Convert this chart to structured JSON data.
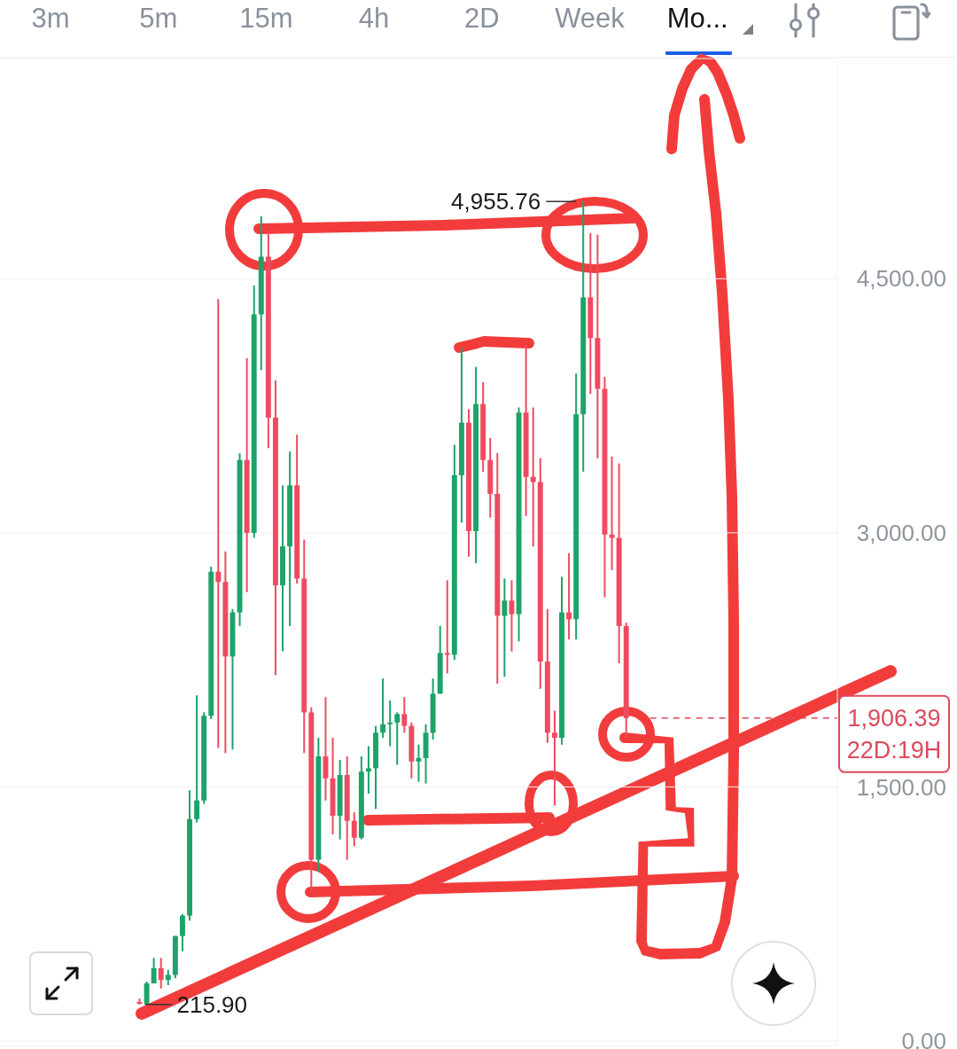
{
  "chart_data": {
    "type": "candlestick",
    "categories": [
      null,
      null,
      null,
      null,
      null,
      null,
      null,
      null,
      null,
      null,
      null,
      null,
      null,
      null,
      null,
      null,
      null,
      null,
      null,
      null,
      null,
      null,
      null,
      null,
      null,
      null,
      null,
      null,
      null,
      null,
      null,
      null,
      null,
      null,
      null,
      null,
      null,
      null,
      null,
      null,
      null,
      null,
      null,
      null,
      null,
      null,
      null,
      null,
      null,
      null,
      null,
      null,
      null,
      null,
      null,
      null,
      null,
      null,
      null,
      null,
      null,
      null,
      null,
      null,
      null,
      null,
      null,
      null,
      null,
      null,
      null,
      null,
      null,
      null,
      null,
      null,
      null,
      null,
      null,
      null,
      null,
      null,
      null,
      null,
      null,
      null,
      null,
      null,
      null,
      null,
      null,
      null,
      null,
      null,
      null,
      null,
      null,
      null,
      null,
      null,
      null,
      null,
      null,
      null,
      null,
      null,
      null,
      null,
      null,
      null,
      null,
      null,
      null,
      null,
      null,
      null,
      null
    ],
    "ohlc": [
      null,
      null,
      null,
      null,
      null,
      null,
      null,
      null,
      null,
      null,
      null,
      null,
      null,
      null,
      null,
      null,
      null,
      null,
      null,
      [
        230,
        250,
        215.9,
        220
      ],
      [
        220,
        350,
        220,
        340
      ],
      [
        340,
        490,
        340,
        430
      ],
      [
        430,
        490,
        310,
        360
      ],
      [
        360,
        420,
        330,
        390
      ],
      [
        390,
        620,
        370,
        620
      ],
      [
        620,
        750,
        530,
        740
      ],
      [
        740,
        1480,
        710,
        1310
      ],
      [
        1310,
        2040,
        1290,
        1420
      ],
      [
        1420,
        1940,
        1400,
        1920
      ],
      [
        1920,
        2800,
        1900,
        2770
      ],
      [
        2770,
        4380,
        1730,
        2710
      ],
      [
        2710,
        2890,
        1700,
        2270
      ],
      [
        2270,
        2550,
        1720,
        2530
      ],
      [
        2530,
        3470,
        2450,
        3430
      ],
      [
        3430,
        4030,
        2650,
        3000
      ],
      [
        3000,
        4460,
        2970,
        4290
      ],
      [
        4290,
        4870,
        3960,
        4630
      ],
      [
        4630,
        4780,
        3500,
        3680
      ],
      [
        3680,
        3900,
        2160,
        2690
      ],
      [
        2690,
        3280,
        2300,
        2920
      ],
      [
        2920,
        3480,
        2450,
        3280
      ],
      [
        3280,
        3580,
        2700,
        2730
      ],
      [
        2730,
        2960,
        1700,
        1940
      ],
      [
        1940,
        1970,
        880,
        1070
      ],
      [
        1070,
        1790,
        1000,
        1680
      ],
      [
        1680,
        2030,
        1420,
        1550
      ],
      [
        1550,
        1790,
        1220,
        1330
      ],
      [
        1330,
        1660,
        1190,
        1570
      ],
      [
        1570,
        1680,
        1070,
        1300
      ],
      [
        1300,
        1350,
        1150,
        1200
      ],
      [
        1200,
        1680,
        1190,
        1590
      ],
      [
        1590,
        1740,
        1460,
        1610
      ],
      [
        1610,
        1860,
        1370,
        1820
      ],
      [
        1820,
        2140,
        1790,
        1870
      ],
      [
        1870,
        2010,
        1740,
        1880
      ],
      [
        1880,
        1940,
        1630,
        1930
      ],
      [
        1930,
        2030,
        1820,
        1860
      ],
      [
        1860,
        1880,
        1550,
        1650
      ],
      [
        1650,
        1750,
        1530,
        1670
      ],
      [
        1670,
        1870,
        1520,
        1820
      ],
      [
        1820,
        2140,
        1780,
        2050
      ],
      [
        2050,
        2450,
        2050,
        2290
      ],
      [
        2290,
        2720,
        2170,
        2280
      ],
      [
        2280,
        3520,
        2250,
        3340
      ],
      [
        3340,
        4090,
        3060,
        3650
      ],
      [
        3650,
        3730,
        2860,
        3010
      ],
      [
        3010,
        3980,
        2820,
        3760
      ],
      [
        3760,
        3890,
        3360,
        3430
      ],
      [
        3430,
        3560,
        3090,
        3230
      ],
      [
        3230,
        3470,
        2110,
        2510
      ],
      [
        2510,
        2730,
        2150,
        2600
      ],
      [
        2600,
        2720,
        2300,
        2520
      ],
      [
        2520,
        3740,
        2360,
        3710
      ],
      [
        3710,
        4110,
        3100,
        3330
      ],
      [
        3330,
        3740,
        2920,
        3300
      ],
      [
        3300,
        3440,
        2080,
        2240
      ],
      [
        2240,
        2550,
        1760,
        1820
      ],
      [
        1820,
        1950,
        1390,
        1790
      ],
      [
        1790,
        2740,
        1750,
        2530
      ],
      [
        2530,
        2880,
        2370,
        2490
      ],
      [
        2490,
        3940,
        2370,
        3700
      ],
      [
        3700,
        4955.76,
        3360,
        4390
      ],
      [
        4390,
        4770,
        3820,
        4150
      ],
      [
        4150,
        4760,
        3440,
        3850
      ],
      [
        3850,
        3920,
        2620,
        2990
      ],
      [
        2990,
        3450,
        2780,
        2970
      ],
      [
        2970,
        3410,
        2230,
        2450
      ],
      [
        2450,
        2470,
        1790,
        1906.39
      ],
      null,
      null,
      null,
      null,
      null,
      null,
      null,
      null,
      null,
      null,
      null,
      null,
      null,
      null,
      null,
      null,
      null,
      null,
      null,
      null,
      null,
      null,
      null,
      null,
      null,
      null,
      null,
      null,
      null
    ],
    "colors": [
      null,
      null,
      null,
      null,
      null,
      null,
      null,
      null,
      null,
      null,
      null,
      null,
      null,
      null,
      null,
      null,
      null,
      null,
      null,
      "#ee4b60",
      "#1da36a",
      "#1da36a",
      "#ee4b60",
      "#1da36a",
      "#1da36a",
      "#1da36a",
      "#1da36a",
      "#1da36a",
      "#1da36a",
      "#1da36a",
      "#ee4b60",
      "#ee4b60",
      "#1da36a",
      "#1da36a",
      "#ee4b60",
      "#1da36a",
      "#1da36a",
      "#ee4b60",
      "#ee4b60",
      "#1da36a",
      "#1da36a",
      "#ee4b60",
      "#ee4b60",
      "#ee4b60",
      "#1da36a",
      "#ee4b60",
      "#ee4b60",
      "#1da36a",
      "#ee4b60",
      "#ee4b60",
      "#1da36a",
      "#1da36a",
      "#1da36a",
      "#1da36a",
      "#1da36a",
      "#1da36a",
      "#ee4b60",
      "#ee4b60",
      "#1da36a",
      "#1da36a",
      "#1da36a",
      "#1da36a",
      "#ee4b60",
      "#1da36a",
      "#1da36a",
      "#ee4b60",
      "#1da36a",
      "#ee4b60",
      "#ee4b60",
      "#ee4b60",
      "#1da36a",
      "#ee4b60",
      "#1da36a",
      "#ee4b60",
      "#ee4b60",
      "#ee4b60",
      "#ee4b60",
      "#ee4b60",
      "#1da36a",
      "#ee4b60",
      "#1da36a",
      "#1da36a",
      "#ee4b60",
      "#ee4b60",
      "#ee4b60",
      "#ee4b60",
      "#ee4b60",
      "#ee4b60",
      null,
      null,
      null,
      null,
      null,
      null,
      null,
      null,
      null,
      null,
      null,
      null,
      null,
      null,
      null,
      null,
      null,
      null,
      null,
      null,
      null,
      null,
      null,
      null,
      null,
      null,
      null,
      null,
      null
    ],
    "ylim": [
      -30,
      5800
    ],
    "yticks": [
      {
        "value": 0,
        "label": "0.00"
      },
      {
        "value": 1500,
        "label": "1,500.00"
      },
      {
        "value": 3000,
        "label": "3,000.00"
      },
      {
        "value": 4500,
        "label": "4,500.00"
      }
    ],
    "grid": "y",
    "tick_labels": "y",
    "ref_lines": [
      {
        "axis": "y",
        "value": 1906.39,
        "label": "1,906.39",
        "color": "#dc4a5c",
        "line_style": "dashed"
      }
    ],
    "annotations": [
      "3m",
      "5m",
      "15m",
      "4h",
      "2D",
      "Week",
      "Mo...",
      "22D:19H",
      "4,955.76",
      "215.90"
    ]
  }
}
